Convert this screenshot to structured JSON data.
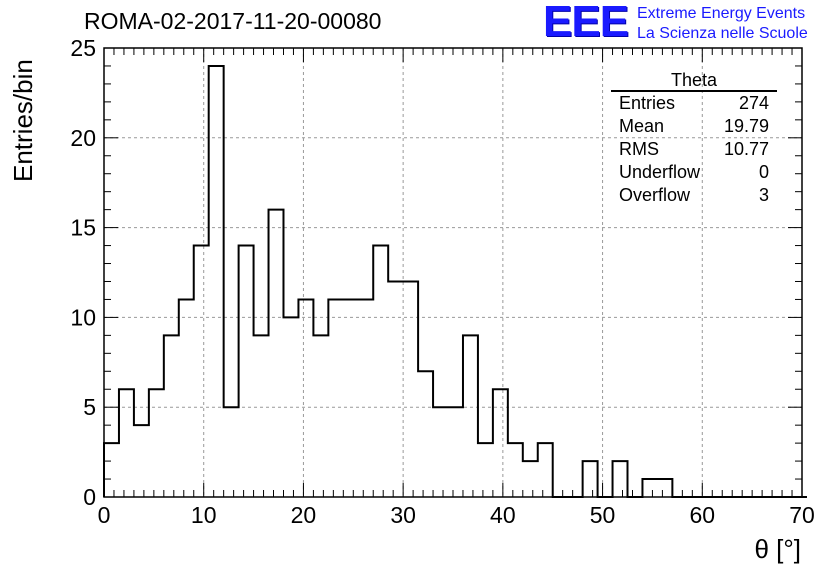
{
  "title": "ROMA-02-2017-11-20-00080",
  "logo": {
    "mark": "EEE",
    "line1": "Extreme Energy Events",
    "line2": "La Scienza nelle Scuole"
  },
  "stats_box": {
    "title": "Theta",
    "rows": [
      {
        "label": "Entries",
        "value": "274"
      },
      {
        "label": "Mean",
        "value": "19.79"
      },
      {
        "label": "RMS",
        "value": "10.77"
      },
      {
        "label": "Underflow",
        "value": "0"
      },
      {
        "label": "Overflow",
        "value": "3"
      }
    ]
  },
  "chart_data": {
    "type": "bar",
    "style": "step-histogram",
    "xlabel": "θ [°]",
    "ylabel": "Entries/bin",
    "xlim": [
      0,
      70
    ],
    "ylim": [
      0,
      25
    ],
    "xticks": [
      "0",
      "10",
      "20",
      "30",
      "40",
      "50",
      "60",
      "70"
    ],
    "yticks": [
      "0",
      "5",
      "10",
      "15",
      "20",
      "25"
    ],
    "grid": true,
    "bin_width": 1.5,
    "bin_start": 0,
    "values": [
      3,
      6,
      4,
      6,
      9,
      11,
      14,
      24,
      5,
      14,
      9,
      16,
      10,
      11,
      9,
      11,
      11,
      11,
      14,
      12,
      12,
      7,
      5,
      5,
      9,
      3,
      6,
      3,
      2,
      3,
      0,
      0,
      2,
      0,
      2,
      0,
      1,
      1,
      0,
      0,
      0,
      0,
      0,
      0,
      0,
      0,
      0
    ]
  }
}
